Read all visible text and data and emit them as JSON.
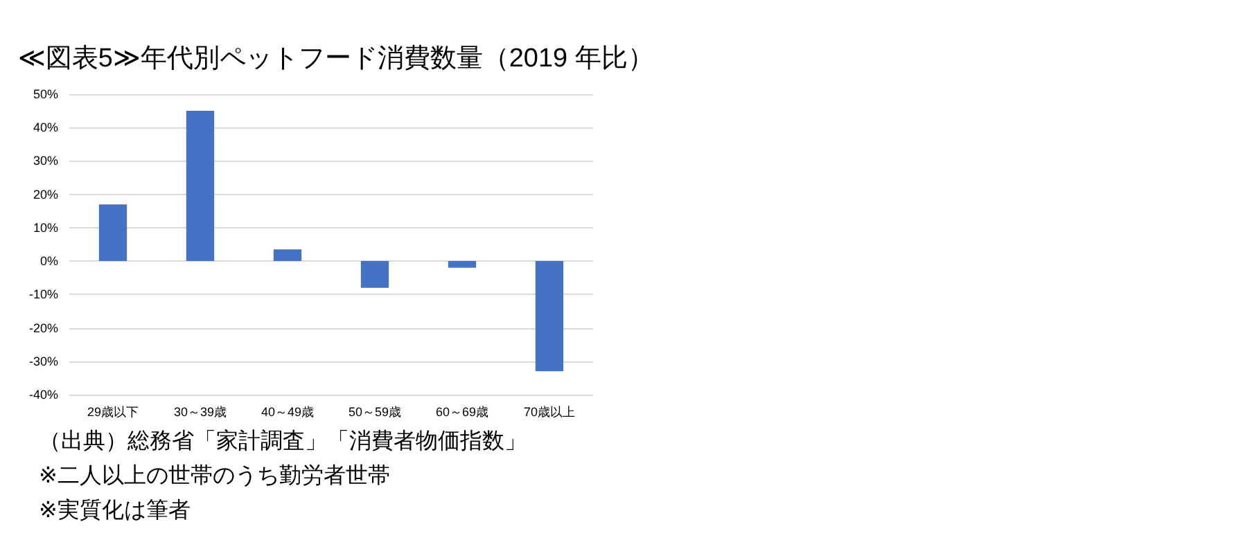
{
  "chart_data": {
    "type": "bar",
    "title": "≪図表5≫年代別ペットフード消費数量（2019 年比）",
    "categories": [
      "29歳以下",
      "30～39歳",
      "40～49歳",
      "50～59歳",
      "60～69歳",
      "70歳以上"
    ],
    "values": [
      17,
      45,
      3.5,
      -8,
      -2,
      -33
    ],
    "color": "#4472c4",
    "ylim": [
      -40,
      50
    ],
    "yticks": [
      {
        "value": -40,
        "label": "-40%"
      },
      {
        "value": -30,
        "label": "-30%"
      },
      {
        "value": -20,
        "label": "-20%"
      },
      {
        "value": -10,
        "label": "-10%"
      },
      {
        "value": 0,
        "label": "0%"
      },
      {
        "value": 10,
        "label": "10%"
      },
      {
        "value": 20,
        "label": "20%"
      },
      {
        "value": 30,
        "label": "30%"
      },
      {
        "value": 40,
        "label": "40%"
      },
      {
        "value": 50,
        "label": "50%"
      }
    ],
    "grid": "y",
    "annotations": [
      "（出典）総務省「家計調査」「消費者物価指数」",
      "※二人以上の世帯のうち勤労者世帯",
      "※実質化は筆者"
    ]
  }
}
